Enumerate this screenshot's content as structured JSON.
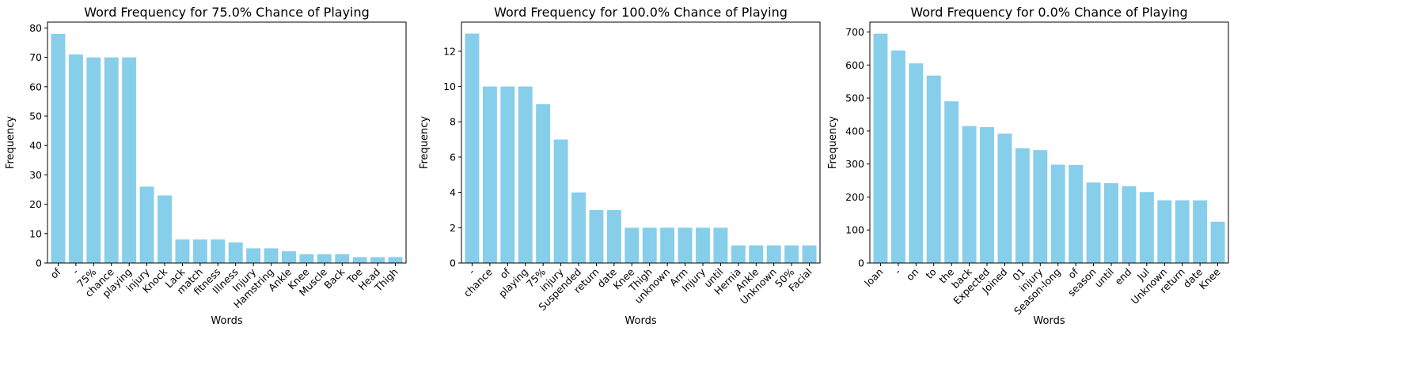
{
  "bar_color": "#87ceeb",
  "chart_data": [
    {
      "type": "bar",
      "title": "Word Frequency for 75.0% Chance of Playing",
      "xlabel": "Words",
      "ylabel": "Frequency",
      "ylim": [
        0,
        82
      ],
      "yticks": [
        0,
        10,
        20,
        30,
        40,
        50,
        60,
        70,
        80
      ],
      "categories": [
        "of",
        "-",
        "75%",
        "chance",
        "playing",
        "injury",
        "Knock",
        "Lack",
        "match",
        "fitness",
        "Illness",
        "Injury",
        "Hamstring",
        "Ankle",
        "Knee",
        "Muscle",
        "Back",
        "Toe",
        "Head",
        "Thigh"
      ],
      "values": [
        78,
        71,
        70,
        70,
        70,
        26,
        23,
        8,
        8,
        8,
        7,
        5,
        5,
        4,
        3,
        3,
        3,
        2,
        2,
        2
      ]
    },
    {
      "type": "bar",
      "title": "Word Frequency for 100.0% Chance of Playing",
      "xlabel": "Words",
      "ylabel": "Frequency",
      "ylim": [
        0,
        13.65
      ],
      "yticks": [
        0,
        2,
        4,
        6,
        8,
        10,
        12
      ],
      "categories": [
        "-",
        "chance",
        "of",
        "playing",
        "75%",
        "injury",
        "Suspended",
        "return",
        "date",
        "Knee",
        "Thigh",
        "unknown",
        "Arm",
        "Injury",
        "until",
        "Hernia",
        "Ankle",
        "Unknown",
        "50%",
        "Facial"
      ],
      "values": [
        13,
        10,
        10,
        10,
        9,
        7,
        4,
        3,
        3,
        2,
        2,
        2,
        2,
        2,
        2,
        1,
        1,
        1,
        1,
        1
      ]
    },
    {
      "type": "bar",
      "title": "Word Frequency for 0.0% Chance of Playing",
      "xlabel": "Words",
      "ylabel": "Frequency",
      "ylim": [
        0,
        730
      ],
      "yticks": [
        0,
        100,
        200,
        300,
        400,
        500,
        600,
        700
      ],
      "categories": [
        "loan",
        "-",
        "on",
        "to",
        "the",
        "back",
        "Expected",
        "Joined",
        "01",
        "injury",
        "Season-long",
        "of",
        "season",
        "until",
        "end",
        "Jul",
        "Unknown",
        "return",
        "date",
        "Knee"
      ],
      "values": [
        695,
        644,
        605,
        568,
        490,
        415,
        412,
        392,
        348,
        342,
        298,
        297,
        244,
        242,
        233,
        215,
        190,
        190,
        190,
        125
      ]
    }
  ]
}
